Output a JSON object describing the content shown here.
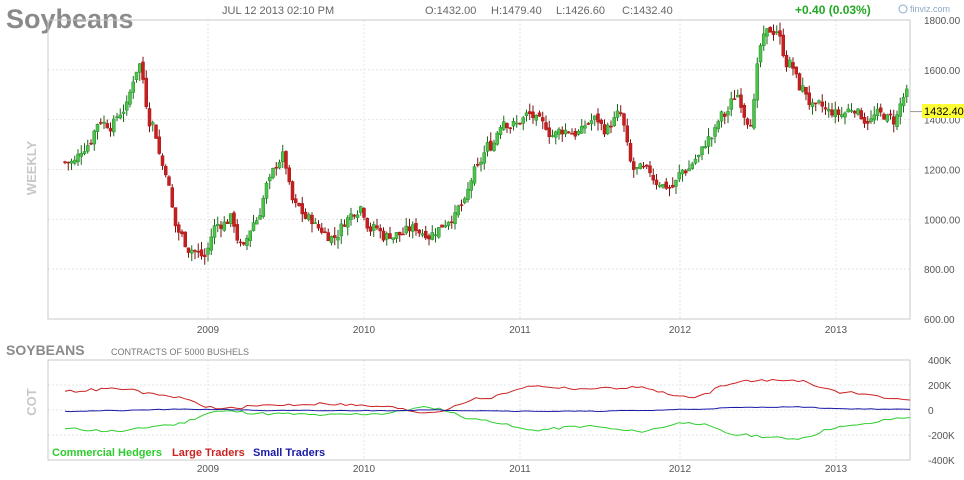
{
  "header": {
    "title": "Soybeans",
    "date": "JUL 12 2013 02:10 PM",
    "open": "O:1432.00",
    "high": "H:1479.40",
    "low": "L:1426.60",
    "close": "C:1432.40",
    "change": "+0.40 (0.03%)",
    "brand": "finviz.com",
    "change_color": "#22a822"
  },
  "price_panel": {
    "side_label": "WEEKLY",
    "last_price_label": "1432.40",
    "y_ticks": [
      "1800.00",
      "1600.00",
      "1400.00",
      "1200.00",
      "1000.00",
      "800.00",
      "600.00"
    ],
    "x_ticks": [
      "2009",
      "2010",
      "2011",
      "2012",
      "2013"
    ]
  },
  "cot_panel": {
    "title": "SOYBEANS",
    "subtitle": "CONTRACTS OF 5000 BUSHELS",
    "side_label": "COT",
    "y_ticks": [
      "400K",
      "200K",
      "0",
      "-200K",
      "-400K"
    ],
    "x_ticks": [
      "2009",
      "2010",
      "2011",
      "2012",
      "2013"
    ],
    "legend": [
      {
        "label": "Commercial Hedgers",
        "color": "#2ecc2e"
      },
      {
        "label": "Large Traders",
        "color": "#cc2222"
      },
      {
        "label": "Small Traders",
        "color": "#1a1aa8"
      }
    ]
  },
  "chart_data": [
    {
      "type": "candlestick",
      "title": "Soybeans",
      "period": "weekly",
      "ylim": [
        600,
        1800
      ],
      "x": [
        "2008-02",
        "2008-03",
        "2008-04",
        "2008-05",
        "2008-06",
        "2008-07",
        "2008-08",
        "2008-09",
        "2008-10",
        "2008-11",
        "2008-12",
        "2009-01",
        "2009-02",
        "2009-03",
        "2009-04",
        "2009-05",
        "2009-06",
        "2009-07",
        "2009-08",
        "2009-09",
        "2009-10",
        "2009-11",
        "2009-12",
        "2010-01",
        "2010-02",
        "2010-03",
        "2010-04",
        "2010-05",
        "2010-06",
        "2010-07",
        "2010-08",
        "2010-09",
        "2010-10",
        "2010-11",
        "2010-12",
        "2011-01",
        "2011-02",
        "2011-03",
        "2011-04",
        "2011-05",
        "2011-06",
        "2011-07",
        "2011-08",
        "2011-09",
        "2011-10",
        "2011-11",
        "2011-12",
        "2012-01",
        "2012-02",
        "2012-03",
        "2012-04",
        "2012-05",
        "2012-06",
        "2012-07",
        "2012-08",
        "2012-09",
        "2012-10",
        "2012-11",
        "2012-12",
        "2013-01",
        "2013-02",
        "2013-03",
        "2013-04",
        "2013-05",
        "2013-06",
        "2013-07"
      ],
      "close": [
        1230,
        1300,
        1400,
        1380,
        1450,
        1620,
        1380,
        1200,
        950,
        880,
        850,
        980,
        1000,
        880,
        1000,
        1150,
        1250,
        1050,
        1000,
        960,
        930,
        1000,
        1050,
        960,
        930,
        940,
        960,
        950,
        960,
        1010,
        1060,
        1200,
        1300,
        1400,
        1380,
        1420,
        1380,
        1340,
        1360,
        1350,
        1400,
        1360,
        1420,
        1200,
        1190,
        1150,
        1130,
        1200,
        1250,
        1330,
        1420,
        1500,
        1400,
        1720,
        1760,
        1620,
        1520,
        1440,
        1430,
        1420,
        1450,
        1400,
        1420,
        1400,
        1500,
        1432
      ],
      "price_label": "1432.40"
    },
    {
      "type": "line",
      "title": "SOYBEANS",
      "ylim": [
        -400000,
        400000
      ],
      "x": [
        "2008-02",
        "2008-06",
        "2008-10",
        "2009-02",
        "2009-06",
        "2009-10",
        "2010-02",
        "2010-06",
        "2010-10",
        "2011-02",
        "2011-06",
        "2011-10",
        "2012-02",
        "2012-06",
        "2012-10",
        "2013-02",
        "2013-07"
      ],
      "series": [
        {
          "name": "Commercial Hedgers",
          "values": [
            -150000,
            -170000,
            -120000,
            -10000,
            -30000,
            -40000,
            -30000,
            20000,
            -80000,
            -160000,
            -130000,
            -170000,
            -100000,
            -200000,
            -230000,
            -130000,
            -60000
          ]
        },
        {
          "name": "Large Traders",
          "values": [
            150000,
            170000,
            110000,
            10000,
            40000,
            50000,
            30000,
            -20000,
            90000,
            190000,
            170000,
            180000,
            100000,
            230000,
            240000,
            140000,
            80000
          ]
        },
        {
          "name": "Small Traders",
          "values": [
            -10000,
            -5000,
            5000,
            5000,
            -5000,
            -5000,
            -5000,
            0,
            -5000,
            -10000,
            -10000,
            -5000,
            5000,
            20000,
            25000,
            10000,
            5000
          ]
        }
      ]
    }
  ]
}
